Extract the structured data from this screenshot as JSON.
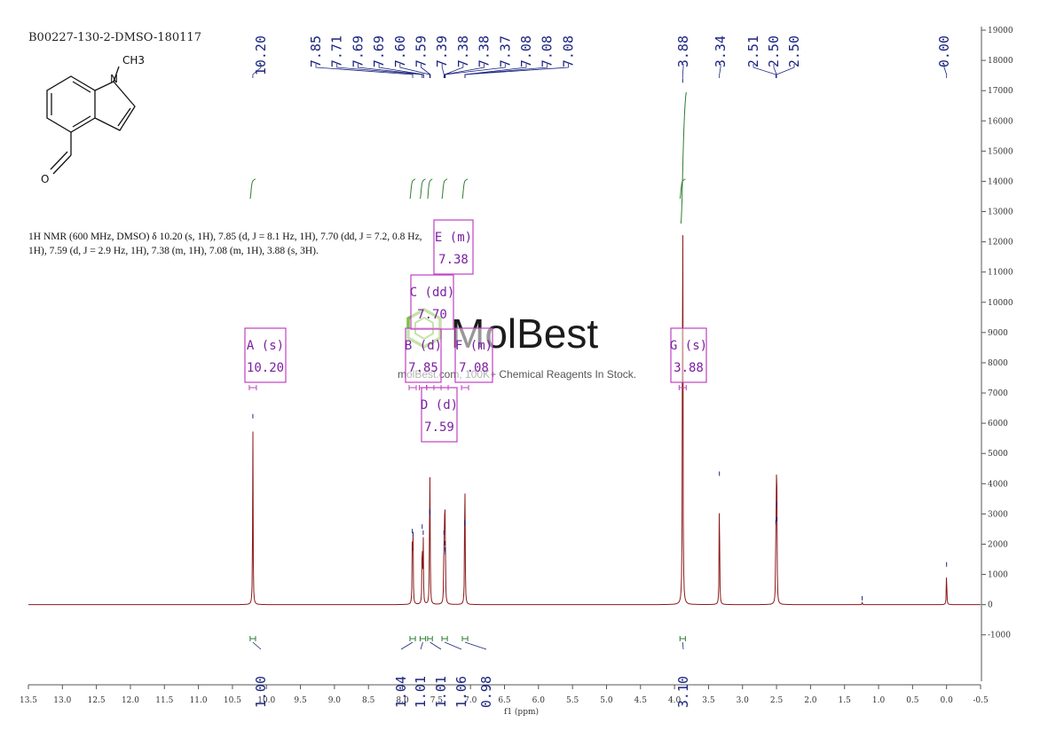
{
  "sample_id": "B00227-130-2-DMSO-180117",
  "molecule": {
    "methyl_label": "CH3",
    "n_label": "N",
    "o_label": "O"
  },
  "nmr_text": {
    "line1": "1H NMR (600 MHz, DMSO) δ 10.20 (s, 1H), 7.85 (d, J = 8.1 Hz, 1H), 7.70 (dd, J = 7.2, 0.8 Hz,",
    "line2": "1H), 7.59 (d, J = 2.9 Hz, 1H), 7.38 (m, 1H), 7.08 (m, 1H), 3.88 (s, 3H)."
  },
  "watermark": {
    "brand": "MolBest",
    "tagline": "molBest.com, 100K+ Chemical Reagents In Stock."
  },
  "colors": {
    "spectrum": "#8b1a1a",
    "peak_labels": "#1a237e",
    "integral": "#2e7d32",
    "region_box": "#c040c0",
    "axis": "#555555"
  },
  "chart_data": {
    "type": "line",
    "title": "B00227-130-2-DMSO-180117",
    "xlabel": "f1 (ppm)",
    "ylabel": "",
    "x_reversed": true,
    "xlim": [
      13.5,
      -0.5
    ],
    "ylim": [
      -1800,
      19000
    ],
    "x_ticks": [
      "13.5",
      "13.0",
      "12.5",
      "12.0",
      "11.5",
      "11.0",
      "10.5",
      "10.0",
      "9.5",
      "9.0",
      "8.5",
      "8.0",
      "7.5",
      "7.0",
      "6.5",
      "6.0",
      "5.5",
      "5.0",
      "4.5",
      "4.0",
      "3.5",
      "3.0",
      "2.5",
      "2.0",
      "1.5",
      "1.0",
      "0.5",
      "0.0",
      "-0.5"
    ],
    "y_ticks": [
      "19000",
      "18000",
      "17000",
      "16000",
      "15000",
      "14000",
      "13000",
      "12000",
      "11000",
      "10000",
      "9000",
      "8000",
      "7000",
      "6000",
      "5000",
      "4000",
      "3000",
      "2000",
      "1000",
      "0",
      "-1000"
    ],
    "peaks": [
      {
        "ppm": 10.2,
        "intensity": 6100
      },
      {
        "ppm": 7.855,
        "intensity": 2300
      },
      {
        "ppm": 7.845,
        "intensity": 2200
      },
      {
        "ppm": 7.71,
        "intensity": 2450
      },
      {
        "ppm": 7.695,
        "intensity": 2250
      },
      {
        "ppm": 7.6,
        "intensity": 2950
      },
      {
        "ppm": 7.595,
        "intensity": 2900
      },
      {
        "ppm": 7.39,
        "intensity": 2250
      },
      {
        "ppm": 7.38,
        "intensity": 1900
      },
      {
        "ppm": 7.375,
        "intensity": 1700
      },
      {
        "ppm": 7.37,
        "intensity": 1600
      },
      {
        "ppm": 7.085,
        "intensity": 2600
      },
      {
        "ppm": 7.08,
        "intensity": 2550
      },
      {
        "ppm": 3.88,
        "intensity": 17200
      },
      {
        "ppm": 3.34,
        "intensity": 4200
      },
      {
        "ppm": 2.51,
        "intensity": 2600
      },
      {
        "ppm": 2.5,
        "intensity": 3200
      },
      {
        "ppm": 2.495,
        "intensity": 2700
      },
      {
        "ppm": 1.24,
        "intensity": 80
      },
      {
        "ppm": 0.0,
        "intensity": 1200
      }
    ],
    "peak_labels": [
      {
        "text": "10.20",
        "ppm": 10.2
      },
      {
        "text": "7.85",
        "ppm": 7.85
      },
      {
        "text": "7.71",
        "ppm": 7.71
      },
      {
        "text": "7.69",
        "ppm": 7.69
      },
      {
        "text": "7.69",
        "ppm": 7.69
      },
      {
        "text": "7.60",
        "ppm": 7.6
      },
      {
        "text": "7.59",
        "ppm": 7.59
      },
      {
        "text": "7.39",
        "ppm": 7.39
      },
      {
        "text": "7.38",
        "ppm": 7.38
      },
      {
        "text": "7.38",
        "ppm": 7.38
      },
      {
        "text": "7.37",
        "ppm": 7.37
      },
      {
        "text": "7.08",
        "ppm": 7.08
      },
      {
        "text": "7.08",
        "ppm": 7.08
      },
      {
        "text": "7.08",
        "ppm": 7.08
      },
      {
        "text": "3.88",
        "ppm": 3.88
      },
      {
        "text": "3.34",
        "ppm": 3.34
      },
      {
        "text": "2.51",
        "ppm": 2.51
      },
      {
        "text": "2.50",
        "ppm": 2.5
      },
      {
        "text": "2.50",
        "ppm": 2.5
      },
      {
        "text": "0.00",
        "ppm": 0.0
      }
    ],
    "integrals": [
      {
        "value": "1.00",
        "from": 10.24,
        "to": 10.16
      },
      {
        "value": "1.04",
        "from": 7.89,
        "to": 7.81
      },
      {
        "value": "1.01",
        "from": 7.74,
        "to": 7.66
      },
      {
        "value": "1.01",
        "from": 7.63,
        "to": 7.56
      },
      {
        "value": "1.06",
        "from": 7.42,
        "to": 7.34
      },
      {
        "value": "0.98",
        "from": 7.12,
        "to": 7.04
      },
      {
        "value": "3.10",
        "from": 3.92,
        "to": 3.84
      }
    ],
    "regions": [
      {
        "label": "A (s)",
        "shift": "10.20",
        "ppm": 10.2
      },
      {
        "label": "B (d)",
        "shift": "7.85",
        "ppm": 7.85
      },
      {
        "label": "C (dd)",
        "shift": "7.70",
        "ppm": 7.7
      },
      {
        "label": "D (d)",
        "shift": "7.59",
        "ppm": 7.59
      },
      {
        "label": "E (m)",
        "shift": "7.38",
        "ppm": 7.38
      },
      {
        "label": "F (m)",
        "shift": "7.08",
        "ppm": 7.08
      },
      {
        "label": "G (s)",
        "shift": "3.88",
        "ppm": 3.88
      }
    ]
  }
}
